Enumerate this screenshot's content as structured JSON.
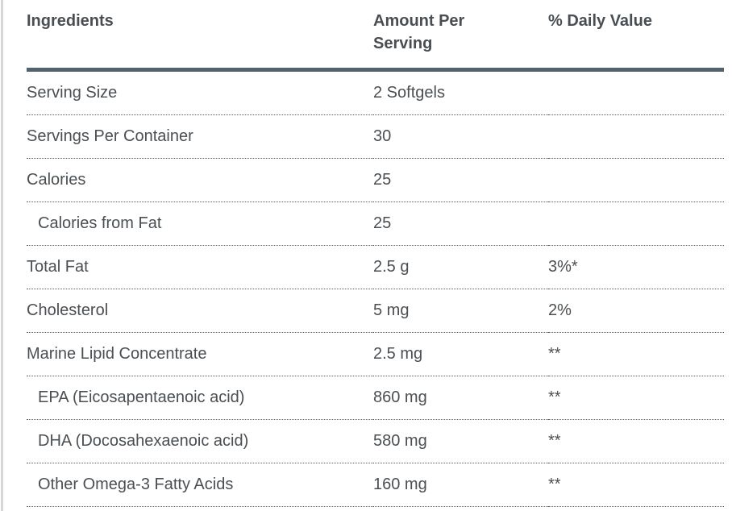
{
  "table": {
    "columns": [
      {
        "label": "Ingredients"
      },
      {
        "label": "Amount Per Serving"
      },
      {
        "label": "% Daily Value"
      }
    ],
    "rows": [
      {
        "ingredient": "Serving Size",
        "amount": "2 Softgels",
        "daily_value": "",
        "indent": false
      },
      {
        "ingredient": "Servings Per Container",
        "amount": "30",
        "daily_value": "",
        "indent": false
      },
      {
        "ingredient": "Calories",
        "amount": "25",
        "daily_value": "",
        "indent": false
      },
      {
        "ingredient": "Calories from Fat",
        "amount": "25",
        "daily_value": "",
        "indent": true
      },
      {
        "ingredient": "Total Fat",
        "amount": "2.5 g",
        "daily_value": "3%*",
        "indent": false
      },
      {
        "ingredient": "Cholesterol",
        "amount": "5 mg",
        "daily_value": "2%",
        "indent": false
      },
      {
        "ingredient": "Marine Lipid Concentrate",
        "amount": "2.5 mg",
        "daily_value": "**",
        "indent": false
      },
      {
        "ingredient": "EPA (Eicosapentaenoic acid)",
        "amount": "860 mg",
        "daily_value": "**",
        "indent": true
      },
      {
        "ingredient": "DHA (Docosahexaenoic acid)",
        "amount": "580 mg",
        "daily_value": "**",
        "indent": true
      },
      {
        "ingredient": "Other Omega-3 Fatty Acids",
        "amount": "160 mg",
        "daily_value": "**",
        "indent": true
      }
    ],
    "colors": {
      "text": "#4a4f53",
      "header_border": "#52636d",
      "row_divider_dotted": "#52636d",
      "page_left_edge": "#d6d6d6"
    }
  }
}
